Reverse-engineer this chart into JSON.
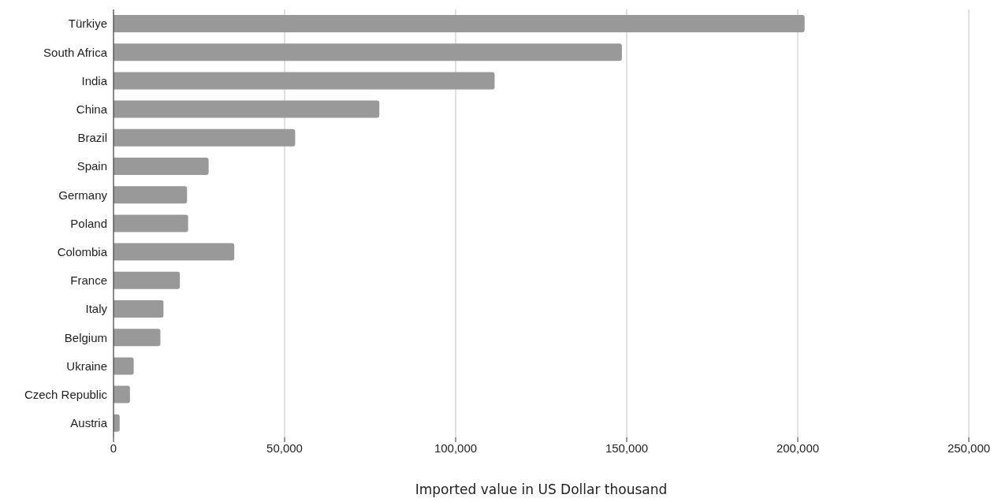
{
  "chart_data": {
    "type": "bar",
    "orientation": "horizontal",
    "xlabel": "Imported value in US Dollar thousand",
    "categories": [
      "Türkiye",
      "South Africa",
      "India",
      "China",
      "Brazil",
      "Spain",
      "Germany",
      "Poland",
      "Colombia",
      "France",
      "Italy",
      "Belgium",
      "Ukraine",
      "Czech Republic",
      "Austria"
    ],
    "values": [
      202000,
      148600,
      111400,
      77700,
      53100,
      27800,
      21500,
      21800,
      35300,
      19400,
      14600,
      13700,
      5900,
      4800,
      1800
    ],
    "color": "#999999",
    "xlim": [
      0,
      250000
    ],
    "xticks": [
      0,
      {
        "value": 50000,
        "label": "50,000"
      },
      {
        "value": 100000,
        "label": "100,000"
      },
      {
        "value": 150000,
        "label": "150,000"
      },
      {
        "value": 200000,
        "label": "200,000"
      },
      {
        "value": 250000,
        "label": "250,000"
      }
    ],
    "grid": "x",
    "legend": false
  }
}
